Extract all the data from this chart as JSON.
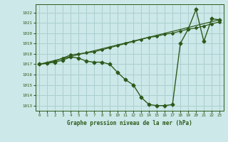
{
  "title": "Graphe pression niveau de la mer (hPa)",
  "background_color": "#cce8e8",
  "grid_color": "#aacfcf",
  "line_color": "#2d5a1b",
  "x_ticks": [
    0,
    1,
    2,
    3,
    4,
    5,
    6,
    7,
    8,
    9,
    10,
    11,
    12,
    13,
    14,
    15,
    16,
    17,
    18,
    19,
    20,
    21,
    22,
    23
  ],
  "y_ticks": [
    1013,
    1014,
    1015,
    1016,
    1017,
    1018,
    1019,
    1020,
    1021,
    1022
  ],
  "ylim": [
    1012.5,
    1022.8
  ],
  "xlim": [
    -0.5,
    23.5
  ],
  "series": [
    {
      "x": [
        0,
        1,
        2,
        3,
        4,
        5,
        6,
        7,
        8,
        9,
        10,
        11,
        12,
        13,
        14,
        15,
        16,
        17,
        18,
        19,
        20,
        21,
        22,
        23
      ],
      "y": [
        1017.0,
        1017.1,
        1017.2,
        1017.4,
        1017.7,
        1017.6,
        1017.3,
        1017.2,
        1017.2,
        1017.0,
        1016.2,
        1015.5,
        1015.0,
        1013.8,
        1013.1,
        1013.0,
        1013.0,
        1013.1,
        1019.0,
        1020.4,
        1022.3,
        1019.2,
        1021.4,
        1021.3
      ],
      "marker": "D",
      "markersize": 2.5,
      "linewidth": 1.0,
      "zorder": 3
    },
    {
      "x": [
        0,
        1,
        2,
        3,
        4,
        5,
        6,
        7,
        8,
        9,
        10,
        11,
        12,
        13,
        14,
        15,
        16,
        17,
        18,
        19,
        20,
        21,
        22,
        23
      ],
      "y": [
        1017.0,
        1017.1,
        1017.3,
        1017.6,
        1017.9,
        1018.0,
        1018.1,
        1018.2,
        1018.4,
        1018.6,
        1018.8,
        1019.0,
        1019.2,
        1019.4,
        1019.6,
        1019.7,
        1019.9,
        1020.0,
        1020.2,
        1020.4,
        1020.5,
        1020.7,
        1020.9,
        1021.1
      ],
      "marker": "D",
      "markersize": 2.0,
      "linewidth": 0.9,
      "zorder": 2
    },
    {
      "x": [
        0,
        23
      ],
      "y": [
        1017.0,
        1021.3
      ],
      "marker": null,
      "markersize": 0,
      "linewidth": 0.9,
      "zorder": 2
    }
  ]
}
